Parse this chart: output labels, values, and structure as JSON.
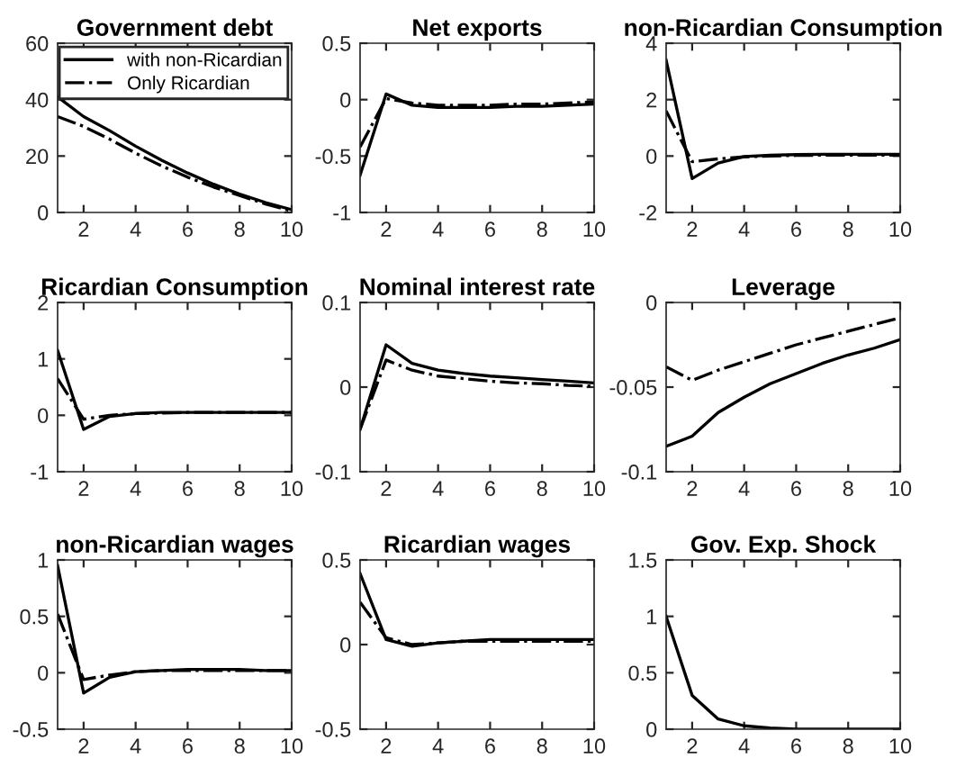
{
  "chart_data": [
    {
      "type": "line",
      "title": "Government debt",
      "x": [
        1,
        2,
        3,
        4,
        5,
        6,
        7,
        8,
        9,
        10
      ],
      "xlim": [
        1,
        10
      ],
      "xticks": [
        2,
        4,
        6,
        8,
        10
      ],
      "ylim": [
        0,
        60
      ],
      "yticks": [
        0,
        20,
        40,
        60
      ],
      "legend": "top right",
      "grid": false,
      "marker": "none",
      "series": [
        {
          "name": "with non-Ricardian",
          "color": "#000000",
          "line_style": "solid",
          "values": [
            41,
            34,
            29,
            23.5,
            18.5,
            14,
            10,
            6.5,
            3.5,
            1
          ]
        },
        {
          "name": "Only Ricardian",
          "color": "#000000",
          "line_style": "dashdot",
          "values": [
            34,
            30.5,
            26,
            21,
            16.5,
            12.5,
            9,
            6,
            3,
            0.5
          ]
        }
      ]
    },
    {
      "type": "line",
      "title": "Net exports",
      "x": [
        1,
        2,
        3,
        4,
        5,
        6,
        7,
        8,
        9,
        10
      ],
      "xlim": [
        1,
        10
      ],
      "xticks": [
        2,
        4,
        6,
        8,
        10
      ],
      "ylim": [
        -1,
        0.5
      ],
      "yticks": [
        -1,
        -0.5,
        0,
        0.5
      ],
      "grid": false,
      "marker": "none",
      "series": [
        {
          "color": "#000000",
          "line_style": "solid",
          "values": [
            -0.67,
            0.05,
            -0.05,
            -0.07,
            -0.07,
            -0.07,
            -0.06,
            -0.06,
            -0.05,
            -0.04
          ]
        },
        {
          "color": "#000000",
          "line_style": "dashdot",
          "values": [
            -0.42,
            0.01,
            -0.03,
            -0.05,
            -0.05,
            -0.05,
            -0.04,
            -0.04,
            -0.03,
            -0.02
          ]
        }
      ]
    },
    {
      "type": "line",
      "title": "non-Ricardian Consumption",
      "x": [
        1,
        2,
        3,
        4,
        5,
        6,
        7,
        8,
        9,
        10
      ],
      "xlim": [
        1,
        10
      ],
      "xticks": [
        2,
        4,
        6,
        8,
        10
      ],
      "ylim": [
        -2,
        4
      ],
      "yticks": [
        -2,
        0,
        2,
        4
      ],
      "grid": false,
      "marker": "none",
      "series": [
        {
          "color": "#000000",
          "line_style": "solid",
          "values": [
            3.4,
            -0.8,
            -0.25,
            -0.02,
            0.03,
            0.05,
            0.06,
            0.06,
            0.06,
            0.06
          ]
        },
        {
          "color": "#000000",
          "line_style": "dashdot",
          "values": [
            1.6,
            -0.2,
            -0.1,
            -0.03,
            0.0,
            0.02,
            0.03,
            0.03,
            0.03,
            0.03
          ]
        }
      ]
    },
    {
      "type": "line",
      "title": "Ricardian Consumption",
      "x": [
        1,
        2,
        3,
        4,
        5,
        6,
        7,
        8,
        9,
        10
      ],
      "xlim": [
        1,
        10
      ],
      "xticks": [
        2,
        4,
        6,
        8,
        10
      ],
      "ylim": [
        -1,
        2
      ],
      "yticks": [
        -1,
        0,
        1,
        2
      ],
      "grid": false,
      "marker": "none",
      "series": [
        {
          "color": "#000000",
          "line_style": "solid",
          "values": [
            1.15,
            -0.25,
            -0.02,
            0.03,
            0.05,
            0.05,
            0.05,
            0.05,
            0.05,
            0.05
          ]
        },
        {
          "color": "#000000",
          "line_style": "dashdot",
          "values": [
            0.65,
            -0.07,
            0.0,
            0.03,
            0.04,
            0.05,
            0.05,
            0.05,
            0.05,
            0.05
          ]
        }
      ]
    },
    {
      "type": "line",
      "title": "Nominal interest rate",
      "x": [
        1,
        2,
        3,
        4,
        5,
        6,
        7,
        8,
        9,
        10
      ],
      "xlim": [
        1,
        10
      ],
      "xticks": [
        2,
        4,
        6,
        8,
        10
      ],
      "ylim": [
        -0.1,
        0.1
      ],
      "yticks": [
        -0.1,
        0,
        0.1
      ],
      "grid": false,
      "marker": "none",
      "series": [
        {
          "color": "#000000",
          "line_style": "solid",
          "values": [
            -0.05,
            0.05,
            0.028,
            0.02,
            0.016,
            0.013,
            0.011,
            0.009,
            0.007,
            0.005
          ]
        },
        {
          "color": "#000000",
          "line_style": "dashdot",
          "values": [
            -0.05,
            0.032,
            0.02,
            0.013,
            0.01,
            0.007,
            0.005,
            0.004,
            0.002,
            0.001
          ]
        }
      ]
    },
    {
      "type": "line",
      "title": "Leverage",
      "x": [
        1,
        2,
        3,
        4,
        5,
        6,
        7,
        8,
        9,
        10
      ],
      "xlim": [
        1,
        10
      ],
      "xticks": [
        2,
        4,
        6,
        8,
        10
      ],
      "ylim": [
        -0.1,
        0
      ],
      "yticks": [
        -0.1,
        -0.05,
        0
      ],
      "grid": false,
      "marker": "none",
      "series": [
        {
          "color": "#000000",
          "line_style": "solid",
          "values": [
            -0.085,
            -0.079,
            -0.065,
            -0.056,
            -0.048,
            -0.042,
            -0.036,
            -0.031,
            -0.027,
            -0.022
          ]
        },
        {
          "color": "#000000",
          "line_style": "dashdot",
          "values": [
            -0.038,
            -0.046,
            -0.04,
            -0.035,
            -0.03,
            -0.025,
            -0.021,
            -0.017,
            -0.013,
            -0.009
          ]
        }
      ]
    },
    {
      "type": "line",
      "title": "non-Ricardian wages",
      "x": [
        1,
        2,
        3,
        4,
        5,
        6,
        7,
        8,
        9,
        10
      ],
      "xlim": [
        1,
        10
      ],
      "xticks": [
        2,
        4,
        6,
        8,
        10
      ],
      "ylim": [
        -0.5,
        1
      ],
      "yticks": [
        -0.5,
        0,
        0.5,
        1
      ],
      "grid": false,
      "marker": "none",
      "series": [
        {
          "color": "#000000",
          "line_style": "solid",
          "values": [
            0.95,
            -0.18,
            -0.04,
            0.01,
            0.02,
            0.03,
            0.03,
            0.03,
            0.02,
            0.02
          ]
        },
        {
          "color": "#000000",
          "line_style": "dashdot",
          "values": [
            0.52,
            -0.06,
            -0.02,
            0.01,
            0.02,
            0.02,
            0.02,
            0.02,
            0.02,
            0.02
          ]
        }
      ]
    },
    {
      "type": "line",
      "title": "Ricardian wages",
      "x": [
        1,
        2,
        3,
        4,
        5,
        6,
        7,
        8,
        9,
        10
      ],
      "xlim": [
        1,
        10
      ],
      "xticks": [
        2,
        4,
        6,
        8,
        10
      ],
      "ylim": [
        -0.5,
        0.5
      ],
      "yticks": [
        -0.5,
        0,
        0.5
      ],
      "grid": false,
      "marker": "none",
      "series": [
        {
          "color": "#000000",
          "line_style": "solid",
          "values": [
            0.42,
            0.03,
            -0.01,
            0.01,
            0.02,
            0.03,
            0.03,
            0.03,
            0.03,
            0.03
          ]
        },
        {
          "color": "#000000",
          "line_style": "dashdot",
          "values": [
            0.25,
            0.04,
            0.0,
            0.01,
            0.02,
            0.02,
            0.02,
            0.02,
            0.02,
            0.02
          ]
        }
      ]
    },
    {
      "type": "line",
      "title": "Gov. Exp. Shock",
      "x": [
        1,
        2,
        3,
        4,
        5,
        6,
        7,
        8,
        9,
        10
      ],
      "xlim": [
        1,
        10
      ],
      "xticks": [
        2,
        4,
        6,
        8,
        10
      ],
      "ylim": [
        0,
        1.5
      ],
      "yticks": [
        0,
        0.5,
        1,
        1.5
      ],
      "grid": false,
      "marker": "none",
      "series": [
        {
          "color": "#000000",
          "line_style": "solid",
          "values": [
            1,
            0.3,
            0.09,
            0.03,
            0.01,
            0,
            0,
            0,
            0,
            0
          ]
        }
      ]
    }
  ]
}
